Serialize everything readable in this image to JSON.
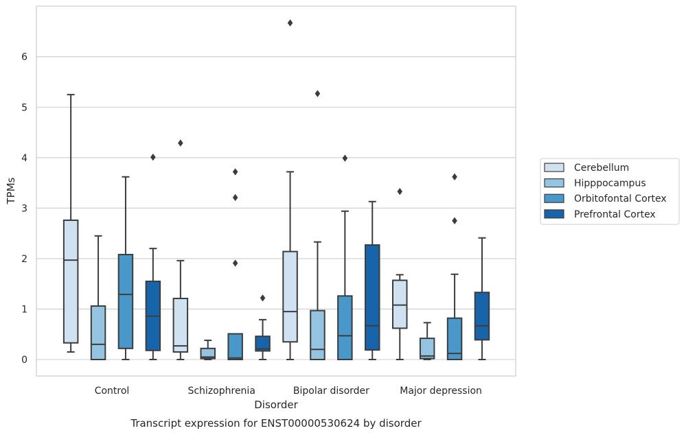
{
  "chart_data": {
    "type": "box",
    "caption": "Transcript expression for ENST00000530624 by disorder",
    "xlabel": "Disorder",
    "ylabel": "TPMs",
    "ylim": [
      -0.32,
      6.95
    ],
    "yticks": [
      0,
      1,
      2,
      3,
      4,
      5,
      6
    ],
    "grid": true,
    "legend_position": "right",
    "categories": [
      "Control",
      "Schizophrenia",
      "Bipolar disorder",
      "Major depression"
    ],
    "series": [
      {
        "name": "Cerebellum",
        "color": "#d0e1f2",
        "boxes": [
          {
            "low": 0.15,
            "q1": 0.33,
            "median": 1.97,
            "q3": 2.76,
            "high": 5.25,
            "outliers": []
          },
          {
            "low": 0.0,
            "q1": 0.15,
            "median": 0.27,
            "q3": 1.21,
            "high": 1.96,
            "outliers": [
              4.29
            ]
          },
          {
            "low": 0.0,
            "q1": 0.35,
            "median": 0.95,
            "q3": 2.14,
            "high": 3.72,
            "outliers": [
              6.67
            ]
          },
          {
            "low": 0.0,
            "q1": 0.62,
            "median": 1.08,
            "q3": 1.57,
            "high": 1.68,
            "outliers": [
              3.33
            ]
          }
        ]
      },
      {
        "name": "Hipppocampus",
        "color": "#94c4df",
        "boxes": [
          {
            "low": 0.0,
            "q1": 0.0,
            "median": 0.3,
            "q3": 1.06,
            "high": 2.45,
            "outliers": []
          },
          {
            "low": 0.0,
            "q1": 0.02,
            "median": 0.05,
            "q3": 0.22,
            "high": 0.38,
            "outliers": []
          },
          {
            "low": 0.0,
            "q1": 0.0,
            "median": 0.2,
            "q3": 0.97,
            "high": 2.33,
            "outliers": [
              5.27
            ]
          },
          {
            "low": 0.0,
            "q1": 0.02,
            "median": 0.07,
            "q3": 0.42,
            "high": 0.73,
            "outliers": []
          }
        ]
      },
      {
        "name": "Orbitofontal Cortex",
        "color": "#4a98c9",
        "boxes": [
          {
            "low": 0.0,
            "q1": 0.22,
            "median": 1.29,
            "q3": 2.08,
            "high": 3.62,
            "outliers": []
          },
          {
            "low": 0.0,
            "q1": 0.0,
            "median": 0.03,
            "q3": 0.51,
            "high": 0.51,
            "outliers": [
              1.91,
              3.21,
              3.72
            ]
          },
          {
            "low": 0.0,
            "q1": 0.0,
            "median": 0.47,
            "q3": 1.26,
            "high": 2.94,
            "outliers": [
              3.99
            ]
          },
          {
            "low": 0.0,
            "q1": 0.0,
            "median": 0.12,
            "q3": 0.82,
            "high": 1.69,
            "outliers": [
              2.75,
              3.62
            ]
          }
        ]
      },
      {
        "name": "Prefrontal Cortex",
        "color": "#1764ab",
        "boxes": [
          {
            "low": 0.0,
            "q1": 0.18,
            "median": 0.86,
            "q3": 1.55,
            "high": 2.2,
            "outliers": [
              4.01
            ]
          },
          {
            "low": 0.0,
            "q1": 0.17,
            "median": 0.21,
            "q3": 0.46,
            "high": 0.79,
            "outliers": [
              1.22
            ]
          },
          {
            "low": 0.0,
            "q1": 0.19,
            "median": 0.67,
            "q3": 2.27,
            "high": 3.13,
            "outliers": []
          },
          {
            "low": 0.0,
            "q1": 0.39,
            "median": 0.67,
            "q3": 1.33,
            "high": 2.41,
            "outliers": []
          }
        ]
      }
    ]
  }
}
